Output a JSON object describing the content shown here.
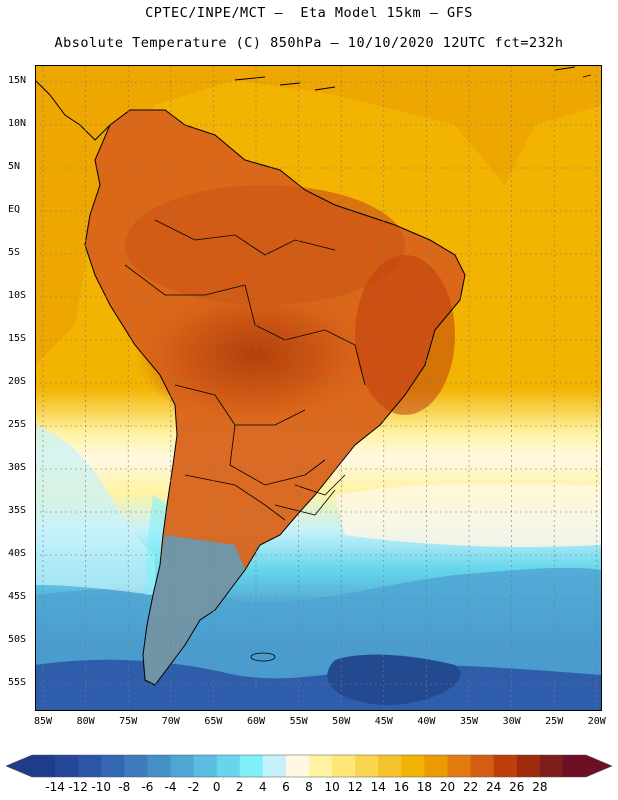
{
  "header": {
    "line1": "CPTEC/INPE/MCT –  Eta Model 15km – GFS",
    "line2": "Absolute Temperature (C) 850hPa – 10/10/2020 12UTC fct=232h"
  },
  "map": {
    "lat_labels": [
      "15N",
      "10N",
      "5N",
      "EQ",
      "5S",
      "10S",
      "15S",
      "20S",
      "25S",
      "30S",
      "35S",
      "40S",
      "45S",
      "50S",
      "55S"
    ],
    "lon_labels": [
      "85W",
      "80W",
      "75W",
      "70W",
      "65W",
      "60W",
      "55W",
      "50W",
      "45W",
      "40W",
      "35W",
      "30W",
      "25W",
      "20W"
    ],
    "colors": {
      "ocean_default": "#f2b400",
      "land_hot": "#d9631a",
      "land_hottest": "#b2400c",
      "cold_south": "#2f6bb0",
      "coldest": "#234a91",
      "coastline": "#000000",
      "grid": "#7a7a7a"
    }
  },
  "colorbar": {
    "labels": [
      "-14",
      "-12",
      "-10",
      "-8",
      "-6",
      "-4",
      "-2",
      "0",
      "2",
      "4",
      "6",
      "8",
      "10",
      "12",
      "14",
      "16",
      "18",
      "20",
      "22",
      "24",
      "26",
      "28"
    ],
    "colors": [
      "#1e3c8a",
      "#25479a",
      "#2b56a8",
      "#3468b4",
      "#3f7cbd",
      "#4690c8",
      "#4fa6d3",
      "#5bbde0",
      "#67d6ec",
      "#7ef0f7",
      "#c7f2fb",
      "#fff8e3",
      "#fff3a3",
      "#ffe676",
      "#f9d550",
      "#f4c22b",
      "#f2b400",
      "#eb9b00",
      "#e27b0f",
      "#d45e12",
      "#bf3e0c",
      "#9f2a0e",
      "#7f1c1c",
      "#6d0f25"
    ]
  }
}
